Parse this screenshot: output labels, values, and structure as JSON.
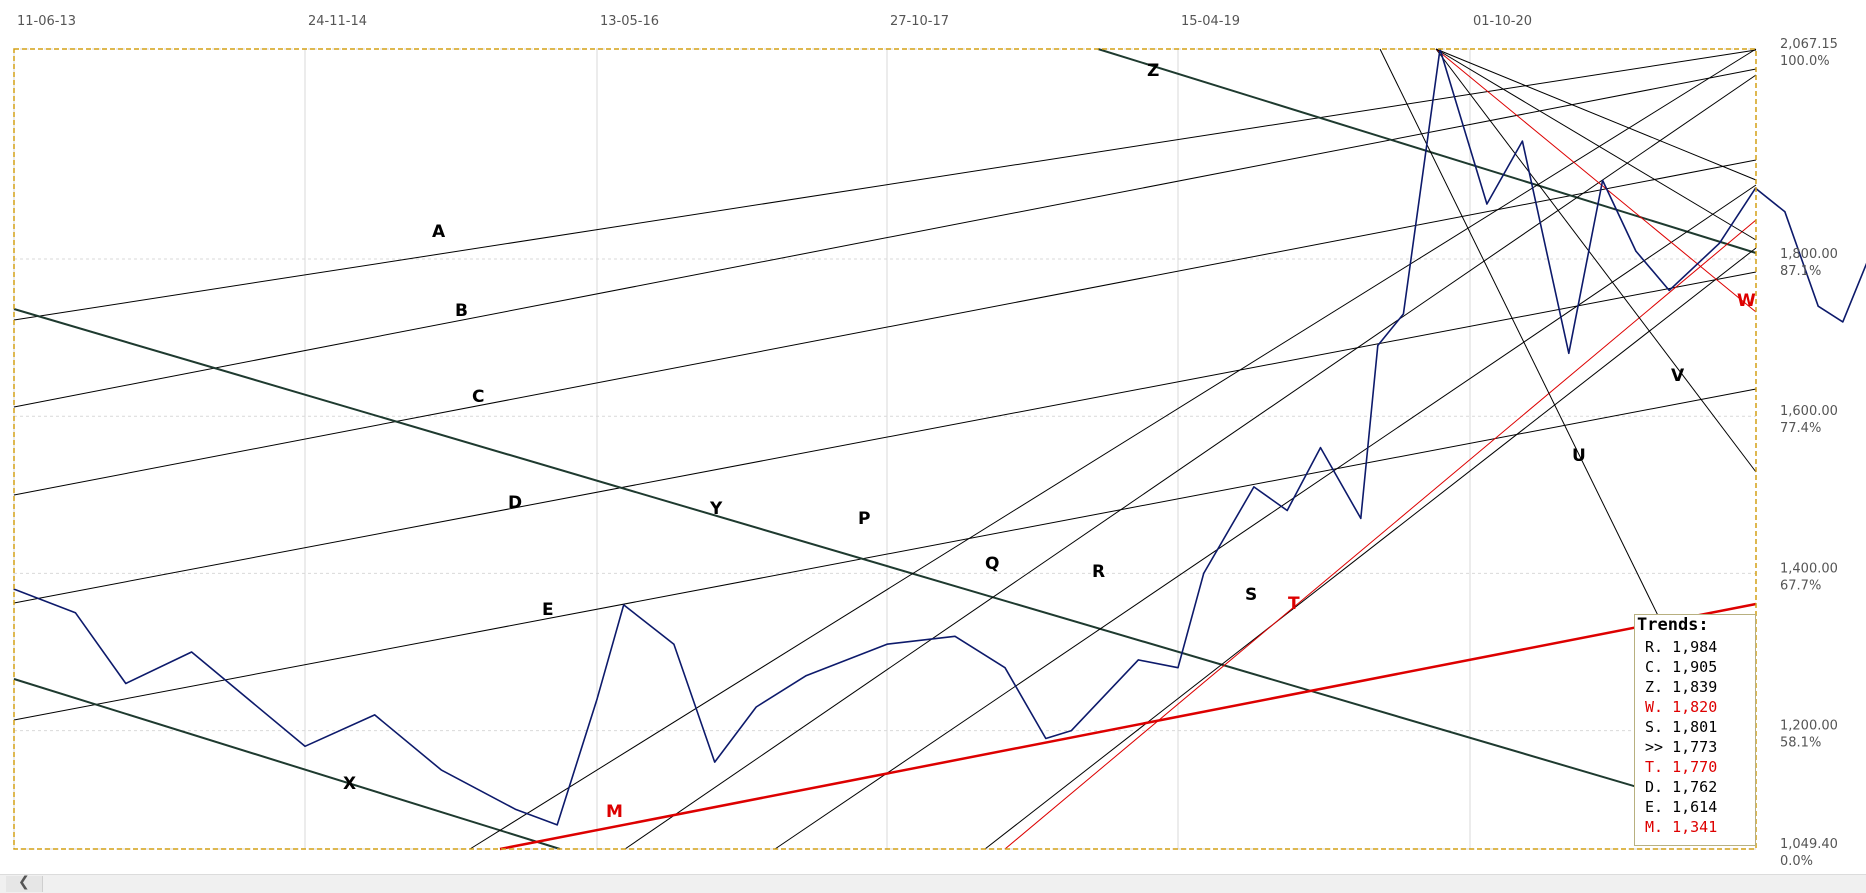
{
  "chart_data": {
    "type": "line",
    "x_ticks": [
      "11-06-13",
      "24-11-14",
      "13-05-16",
      "27-10-17",
      "15-04-19",
      "01-10-20"
    ],
    "y_ticks": [
      {
        "value": 2067.15,
        "label": "2,067.15",
        "pct": "100.0%"
      },
      {
        "value": 1800,
        "label": "1,800.00",
        "pct": "87.1%"
      },
      {
        "value": 1600,
        "label": "1,600.00",
        "pct": "77.4%"
      },
      {
        "value": 1400,
        "label": "1,400.00",
        "pct": "67.7%"
      },
      {
        "value": 1200,
        "label": "1,200.00",
        "pct": "58.1%"
      },
      {
        "value": 1049.4,
        "label": "1,049.40",
        "pct": "0.0%"
      }
    ],
    "ylim": [
      1049.4,
      2067.15
    ],
    "grid": true,
    "price_series": {
      "x": [
        "2013-06-11",
        "2013-10-01",
        "2014-01-01",
        "2014-05-01",
        "2014-11-24",
        "2015-04-01",
        "2015-08-01",
        "2015-12-15",
        "2016-03-01",
        "2016-05-13",
        "2016-07-01",
        "2016-10-01",
        "2016-12-15",
        "2017-03-01",
        "2017-06-01",
        "2017-10-27",
        "2018-03-01",
        "2018-06-01",
        "2018-08-15",
        "2018-10-01",
        "2019-02-01",
        "2019-04-15",
        "2019-06-01",
        "2019-09-01",
        "2019-11-01",
        "2020-01-01",
        "2020-03-15",
        "2020-04-15",
        "2020-06-01",
        "2020-08-07",
        "2020-11-01",
        "2021-01-05",
        "2021-03-31",
        "2021-06-01",
        "2021-08-01",
        "2021-10-01",
        "2022-01-01",
        "2022-03-08",
        "2022-05-01",
        "2022-07-01",
        "2022-08-15",
        "2022-10-01"
      ],
      "y": [
        1380,
        1350,
        1260,
        1300,
        1180,
        1220,
        1150,
        1100,
        1080,
        1240,
        1360,
        1310,
        1160,
        1230,
        1270,
        1310,
        1320,
        1280,
        1190,
        1200,
        1290,
        1280,
        1400,
        1510,
        1480,
        1560,
        1470,
        1690,
        1730,
        2067,
        1870,
        1950,
        1680,
        1900,
        1810,
        1760,
        1820,
        1890,
        1860,
        1740,
        1720,
        1800
      ]
    },
    "trend_lines": [
      {
        "label": "A",
        "color": "#000000"
      },
      {
        "label": "B",
        "color": "#000000"
      },
      {
        "label": "C",
        "color": "#000000"
      },
      {
        "label": "D",
        "color": "#000000"
      },
      {
        "label": "E",
        "color": "#000000"
      },
      {
        "label": "X",
        "color": "#1e3a2f"
      },
      {
        "label": "Y",
        "color": "#1e3a2f"
      },
      {
        "label": "Z",
        "color": "#1e3a2f"
      },
      {
        "label": "P",
        "color": "#000000"
      },
      {
        "label": "Q",
        "color": "#000000"
      },
      {
        "label": "R",
        "color": "#000000"
      },
      {
        "label": "S",
        "color": "#000000"
      },
      {
        "label": "T",
        "color": "#dd0000"
      },
      {
        "label": "U",
        "color": "#000000"
      },
      {
        "label": "V",
        "color": "#000000"
      },
      {
        "label": "W",
        "color": "#dd0000"
      },
      {
        "label": "M",
        "color": "#dd0000"
      }
    ]
  },
  "trends_box": {
    "title": "Trends:",
    "rows": [
      {
        "text": "R. 1,984",
        "color": "#000000"
      },
      {
        "text": "C. 1,905",
        "color": "#000000"
      },
      {
        "text": "Z. 1,839",
        "color": "#000000"
      },
      {
        "text": "W. 1,820",
        "color": "#dd0000"
      },
      {
        "text": "S. 1,801",
        "color": "#000000"
      },
      {
        "text": ">> 1,773",
        "color": "#000000"
      },
      {
        "text": "T. 1,770",
        "color": "#dd0000"
      },
      {
        "text": "D. 1,762",
        "color": "#000000"
      },
      {
        "text": "E. 1,614",
        "color": "#000000"
      },
      {
        "text": "M. 1,341",
        "color": "#dd0000"
      }
    ]
  },
  "colors": {
    "price_line": "#0d1a6b",
    "border": "#d4a017",
    "grid": "#d9d9d9",
    "green_trend": "#1e3a2f",
    "red_trend": "#dd0000"
  },
  "scrollbar": {
    "left_arrow_icon": "chevron-left-icon"
  }
}
